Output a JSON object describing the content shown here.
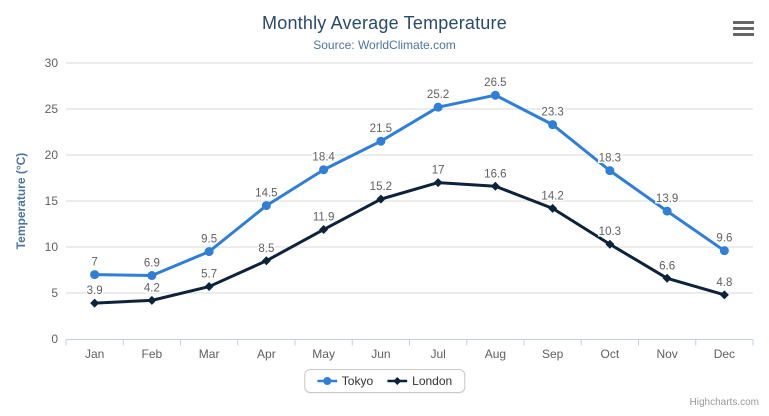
{
  "chart_data": {
    "type": "line",
    "title": "Monthly Average Temperature",
    "subtitle": "Source: WorldClimate.com",
    "categories": [
      "Jan",
      "Feb",
      "Mar",
      "Apr",
      "May",
      "Jun",
      "Jul",
      "Aug",
      "Sep",
      "Oct",
      "Nov",
      "Dec"
    ],
    "series": [
      {
        "name": "Tokyo",
        "color": "#2f7ed8",
        "marker": "circle",
        "values": [
          7,
          6.9,
          9.5,
          14.5,
          18.4,
          21.5,
          25.2,
          26.5,
          23.3,
          18.3,
          13.9,
          9.6
        ]
      },
      {
        "name": "London",
        "color": "#0d233a",
        "marker": "diamond",
        "values": [
          3.9,
          4.2,
          5.7,
          8.5,
          11.9,
          15.2,
          17,
          16.6,
          14.2,
          10.3,
          6.6,
          4.8
        ]
      }
    ],
    "xlabel": "",
    "ylabel": "Temperature (°C)",
    "ylim": [
      0,
      30
    ],
    "ytick_step": 5,
    "grid": true,
    "data_labels": true,
    "legend_position": "bottom"
  },
  "header": {
    "menu_icon": "hamburger"
  },
  "credit": "Highcharts.com",
  "colors": {
    "title": "#274b6d",
    "subtitle": "#4d759e",
    "axis_title": "#4d759e",
    "axis_labels": "#606060",
    "axis_line": "#c0d0e0",
    "gridline": "#d8d8d8",
    "data_label": "#606060",
    "legend_text": "#333333",
    "legend_border": "#c9c9c9"
  }
}
